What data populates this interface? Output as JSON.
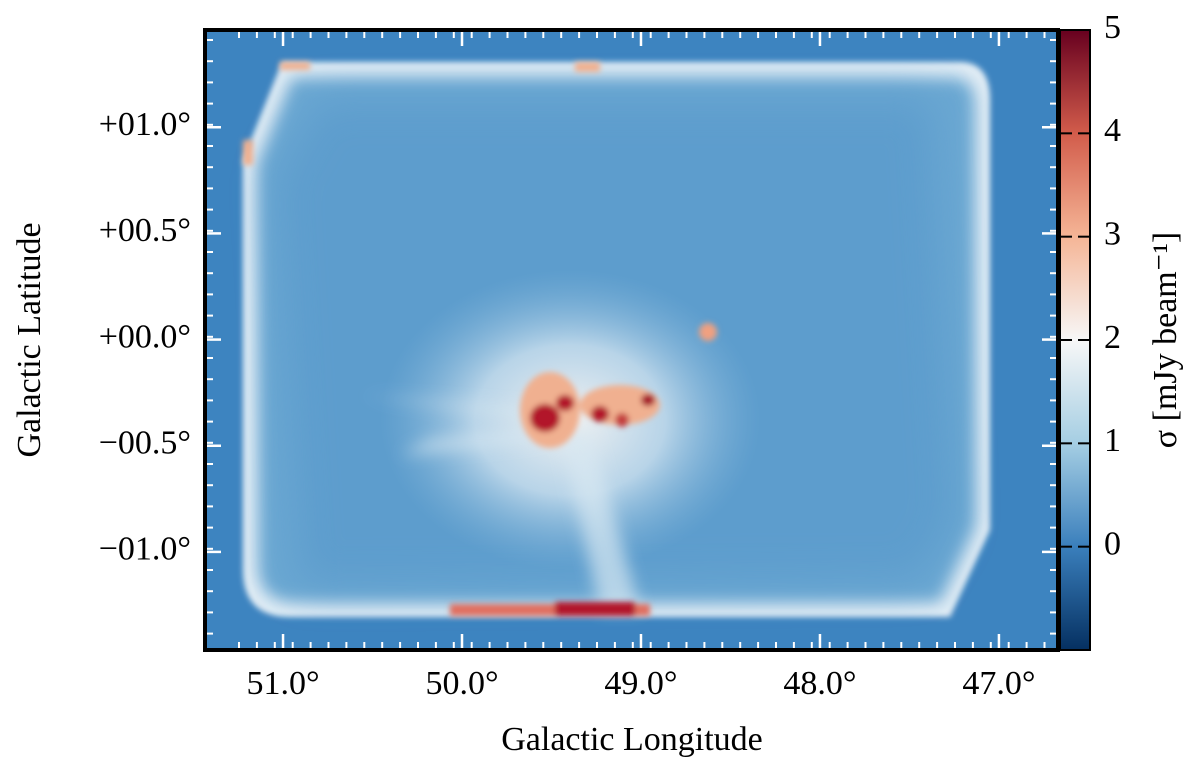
{
  "chart_data": {
    "type": "image",
    "xlabel": "Galactic Longitude",
    "ylabel": "Galactic Latitude",
    "xlim": [
      51.436,
      46.67
    ],
    "ylim": [
      -1.462,
      1.458
    ],
    "xticks": [
      {
        "value": 51,
        "label": "51.0°"
      },
      {
        "value": 50,
        "label": "50.0°"
      },
      {
        "value": 49,
        "label": "49.0°"
      },
      {
        "value": 48,
        "label": "48.0°"
      },
      {
        "value": 47,
        "label": "47.0°"
      }
    ],
    "yticks": [
      {
        "value": 1,
        "label": "+01.0°"
      },
      {
        "value": 0.5,
        "label": "+00.5°"
      },
      {
        "value": 0,
        "label": "+00.0°"
      },
      {
        "value": -0.5,
        "label": "−00.5°"
      },
      {
        "value": -1,
        "label": "−01.0°"
      }
    ],
    "colorbar": {
      "label": "σ [mJy beam⁻¹]",
      "lim": [
        -1,
        5
      ],
      "ticks": [
        0,
        1,
        2,
        3,
        4,
        5
      ],
      "colors": [
        "#053061",
        "#3a7fbc",
        "#a5cee3",
        "#f7f7f7",
        "#f5b596",
        "#d25c4b",
        "#67001f"
      ]
    }
  }
}
